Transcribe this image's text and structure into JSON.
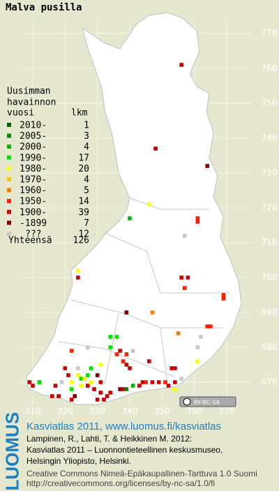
{
  "header": {
    "title": "Malva pusilla"
  },
  "axes": {
    "x_ticks": [
      310,
      320,
      330,
      340,
      350,
      360,
      370
    ],
    "y_ticks": [
      770,
      760,
      750,
      740,
      730,
      720,
      710,
      700,
      690,
      680,
      670
    ]
  },
  "legend": {
    "headers": [
      "Uusimman",
      "havainnon",
      "vuosi",
      "lkm"
    ],
    "rows": [
      {
        "label": "2010-",
        "count": 1,
        "color": "#006400"
      },
      {
        "label": "2005-",
        "count": 3,
        "color": "#008a00"
      },
      {
        "label": "2000-",
        "count": 4,
        "color": "#00b400"
      },
      {
        "label": "1990-",
        "count": 17,
        "color": "#00e600"
      },
      {
        "label": "1980-",
        "count": 20,
        "color": "#ffff00"
      },
      {
        "label": "1970-",
        "count": 4,
        "color": "#ffc800"
      },
      {
        "label": "1960-",
        "count": 5,
        "color": "#ff7800"
      },
      {
        "label": "1950-",
        "count": 14,
        "color": "#ff1e00"
      },
      {
        "label": "1900-",
        "count": 39,
        "color": "#cc0000"
      },
      {
        "label": "-1899",
        "count": 7,
        "color": "#800000"
      },
      {
        "label": "???",
        "count": 12,
        "color": "#c8c8c8"
      }
    ],
    "total_label": "Yhteensä",
    "total": 126
  },
  "records": [
    [
      356,
      761,
      8
    ],
    [
      348,
      737,
      8
    ],
    [
      364,
      732,
      9
    ],
    [
      346,
      721,
      4
    ],
    [
      340,
      717,
      2
    ],
    [
      361,
      717,
      7
    ],
    [
      361,
      716,
      7
    ],
    [
      357,
      712,
      10
    ],
    [
      324,
      702,
      4
    ],
    [
      324,
      700,
      8
    ],
    [
      356,
      700,
      8
    ],
    [
      358,
      700,
      8
    ],
    [
      357,
      697,
      7
    ],
    [
      369,
      695,
      7
    ],
    [
      369,
      694,
      7
    ],
    [
      339,
      690,
      9
    ],
    [
      347,
      690,
      6
    ],
    [
      364,
      686,
      7
    ],
    [
      365,
      686,
      7
    ],
    [
      355,
      684,
      6
    ],
    [
      362,
      683,
      10
    ],
    [
      361,
      680,
      10
    ],
    [
      322,
      679,
      7
    ],
    [
      327,
      680,
      10
    ],
    [
      334,
      683,
      3
    ],
    [
      336,
      683,
      3
    ],
    [
      334,
      680,
      3
    ],
    [
      337,
      679,
      8
    ],
    [
      339,
      678,
      7
    ],
    [
      336,
      678,
      7
    ],
    [
      341,
      679,
      10
    ],
    [
      331,
      675,
      4
    ],
    [
      338,
      676,
      7
    ],
    [
      339,
      675,
      8
    ],
    [
      340,
      674,
      8
    ],
    [
      346,
      676,
      8
    ],
    [
      353,
      674,
      8
    ],
    [
      354,
      674,
      8
    ],
    [
      361,
      676,
      4
    ],
    [
      309,
      670,
      8
    ],
    [
      312,
      670,
      0
    ],
    [
      310,
      669,
      8
    ],
    [
      312,
      670,
      3
    ],
    [
      317,
      669,
      8
    ],
    [
      316,
      666,
      8
    ],
    [
      318,
      666,
      8
    ],
    [
      320,
      674,
      8
    ],
    [
      321,
      672,
      8
    ],
    [
      322,
      670,
      4
    ],
    [
      322,
      668,
      3
    ],
    [
      323,
      666,
      9
    ],
    [
      322,
      665,
      8
    ],
    [
      324,
      672,
      4
    ],
    [
      325,
      671,
      3
    ],
    [
      326,
      671,
      4
    ],
    [
      325,
      669,
      4
    ],
    [
      327,
      672,
      3
    ],
    [
      327,
      669,
      8
    ],
    [
      328,
      670,
      4
    ],
    [
      329,
      668,
      8
    ],
    [
      330,
      672,
      9
    ],
    [
      331,
      670,
      8
    ],
    [
      331,
      667,
      8
    ],
    [
      330,
      665,
      8
    ],
    [
      333,
      666,
      8
    ],
    [
      332,
      665,
      8
    ],
    [
      334,
      667,
      8
    ],
    [
      337,
      668,
      9
    ],
    [
      338,
      668,
      8
    ],
    [
      339,
      668,
      1
    ],
    [
      341,
      669,
      2
    ],
    [
      343,
      669,
      8
    ],
    [
      344,
      670,
      8
    ],
    [
      345,
      670,
      7
    ],
    [
      347,
      670,
      8
    ],
    [
      349,
      670,
      8
    ],
    [
      351,
      670,
      7
    ],
    [
      352,
      669,
      8
    ],
    [
      354,
      670,
      8
    ],
    [
      356,
      671,
      10
    ],
    [
      354,
      668,
      4
    ],
    [
      324,
      674,
      10
    ],
    [
      319,
      670,
      10
    ],
    [
      328,
      674,
      3
    ]
  ],
  "license": "BY-NC-SA",
  "footer": {
    "logo": "LUOMUS",
    "lines": [
      "Kasviatlas 2011, www.luomus.fi/kasviatlas",
      "Lampinen, R., Lahti, T. & Heikkinen M. 2012:",
      "Kasviatlas 2011 – Luonnontieteellinen keskusmuseo,",
      "Helsingin Yliopisto, Helsinki.",
      "Creative Commons Nimeä-Epäkaupallinen-Tarttuva 1.0 Suomi",
      "http://creativecommons.org/licenses/by-nc-sa/1.0/fi"
    ]
  }
}
